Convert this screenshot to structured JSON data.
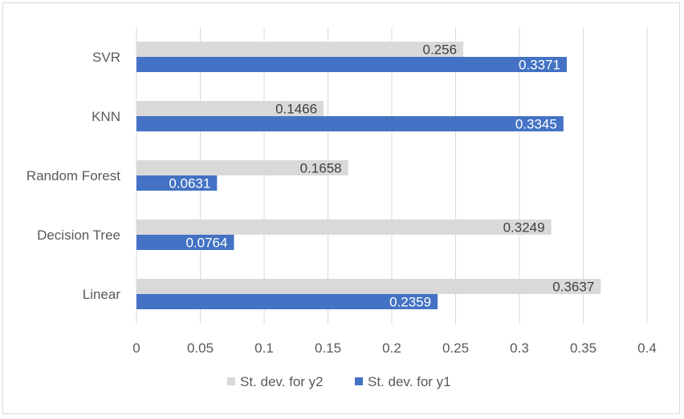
{
  "chart_data": {
    "type": "bar",
    "orientation": "horizontal",
    "categories": [
      "SVR",
      "KNN",
      "Random Forest",
      "Decision Tree",
      "Linear"
    ],
    "series": [
      {
        "name": "St. dev. for y2",
        "color": "#d9d9d9",
        "values": [
          0.256,
          0.1466,
          0.1658,
          0.3249,
          0.3637
        ],
        "labels": [
          "0.256",
          "0.1466",
          "0.1658",
          "0.3249",
          "0.3637"
        ]
      },
      {
        "name": "St. dev. for y1",
        "color": "#4472c4",
        "values": [
          0.3371,
          0.3345,
          0.0631,
          0.0764,
          0.2359
        ],
        "labels": [
          "0.3371",
          "0.3345",
          "0.0631",
          "0.0764",
          "0.2359"
        ]
      }
    ],
    "xlim": [
      0,
      0.4
    ],
    "xticks": [
      0,
      0.05,
      0.1,
      0.15,
      0.2,
      0.25,
      0.3,
      0.35,
      0.4
    ],
    "xtick_labels": [
      "0",
      "0.05",
      "0.1",
      "0.15",
      "0.2",
      "0.25",
      "0.3",
      "0.35",
      "0.4"
    ],
    "grid": "vertical",
    "legend_position": "bottom",
    "title": "",
    "xlabel": "",
    "ylabel": ""
  }
}
